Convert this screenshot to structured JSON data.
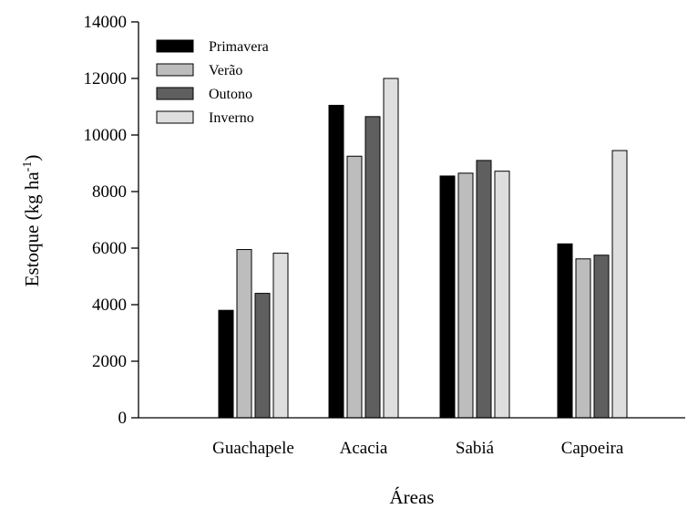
{
  "chart_data": {
    "type": "bar",
    "title": "",
    "xlabel": "Áreas",
    "ylabel": "Estoque (kg ha",
    "ylabel_superscript": "-1",
    "ylabel_suffix": ")",
    "categories": [
      "Guachapele",
      "Acacia",
      "Sabiá",
      "Capoeira"
    ],
    "series": [
      {
        "name": "Primavera",
        "color": "#000000",
        "values": [
          3800,
          11050,
          8550,
          6150
        ]
      },
      {
        "name": "Verão",
        "color": "#bdbdbd",
        "values": [
          5950,
          9250,
          8650,
          5620
        ]
      },
      {
        "name": "Outono",
        "color": "#5f5f5f",
        "values": [
          4400,
          10650,
          9100,
          5750
        ]
      },
      {
        "name": "Inverno",
        "color": "#dedede",
        "values": [
          5820,
          12000,
          8720,
          9450
        ]
      }
    ],
    "ylim": [
      0,
      14000
    ],
    "yticks": [
      "0",
      "2000",
      "4000",
      "6000",
      "8000",
      "10000",
      "12000",
      "14000"
    ],
    "legend_position": "top-left",
    "grid": false
  }
}
